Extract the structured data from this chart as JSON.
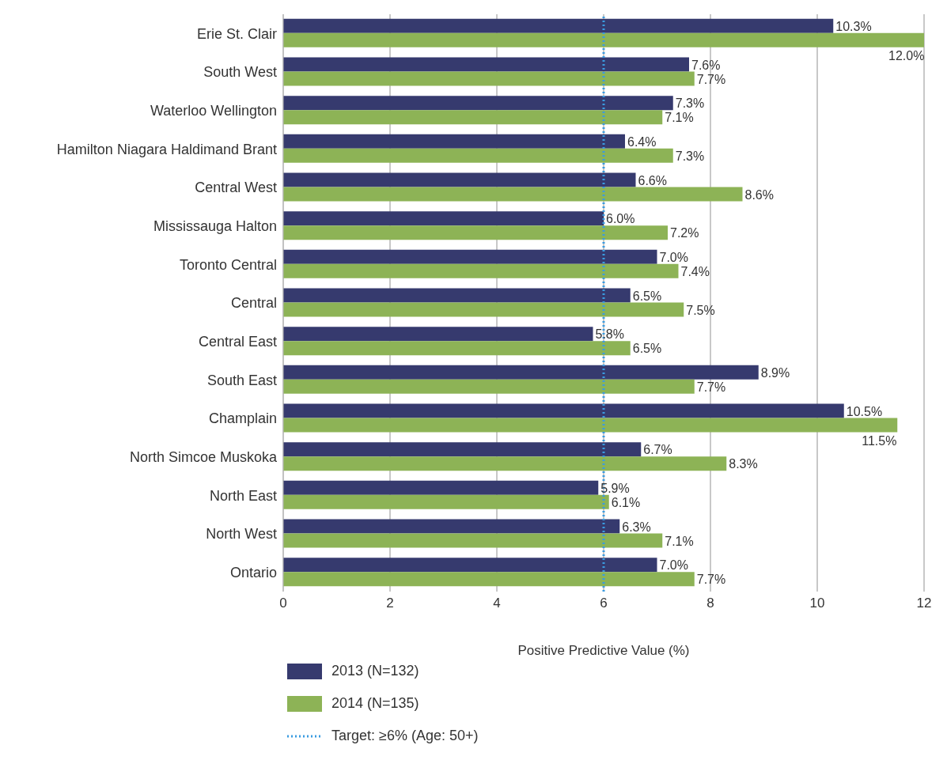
{
  "chart_data": {
    "type": "bar",
    "orientation": "horizontal",
    "xlabel": "Positive Predictive Value (%)",
    "categories": [
      "Erie St. Clair",
      "South West",
      "Waterloo Wellington",
      "Hamilton Niagara Haldimand Brant",
      "Central West",
      "Mississauga Halton",
      "Toronto Central",
      "Central",
      "Central East",
      "South East",
      "Champlain",
      "North Simcoe Muskoka",
      "North East",
      "North West",
      "Ontario"
    ],
    "series": [
      {
        "name": "2013 (N=132)",
        "color": "#363a6e",
        "values": [
          10.3,
          7.6,
          7.3,
          6.4,
          6.6,
          6.0,
          7.0,
          6.5,
          5.8,
          8.9,
          10.5,
          6.7,
          5.9,
          6.3,
          7.0
        ],
        "value_labels": [
          "10.3%",
          "7.6%",
          "7.3%",
          "6.4%",
          "6.6%",
          "6.0%",
          "7.0%",
          "6.5%",
          "5.8%",
          "8.9%",
          "10.5%",
          "6.7%",
          "5.9%",
          "6.3%",
          "7.0%"
        ]
      },
      {
        "name": "2014 (N=135)",
        "color": "#8db356",
        "values": [
          12.0,
          7.7,
          7.1,
          7.3,
          8.6,
          7.2,
          7.4,
          7.5,
          6.5,
          7.7,
          11.5,
          8.3,
          6.1,
          7.1,
          7.7
        ],
        "value_labels": [
          "12.0%",
          "7.7%",
          "7.1%",
          "7.3%",
          "8.6%",
          "7.2%",
          "7.4%",
          "7.5%",
          "6.5%",
          "7.7%",
          "11.5%",
          "8.3%",
          "6.1%",
          "7.1%",
          "7.7%"
        ]
      }
    ],
    "xlim": [
      0,
      12
    ],
    "xticks": [
      0,
      2,
      4,
      6,
      8,
      10,
      12
    ],
    "grid": "x",
    "legend": "bottom",
    "ref_lines": [
      {
        "axis": "x",
        "value": 6,
        "label": "Target: ≥6% (Age: 50+)",
        "color": "#3a9be0",
        "line_style": "dotted"
      }
    ]
  }
}
